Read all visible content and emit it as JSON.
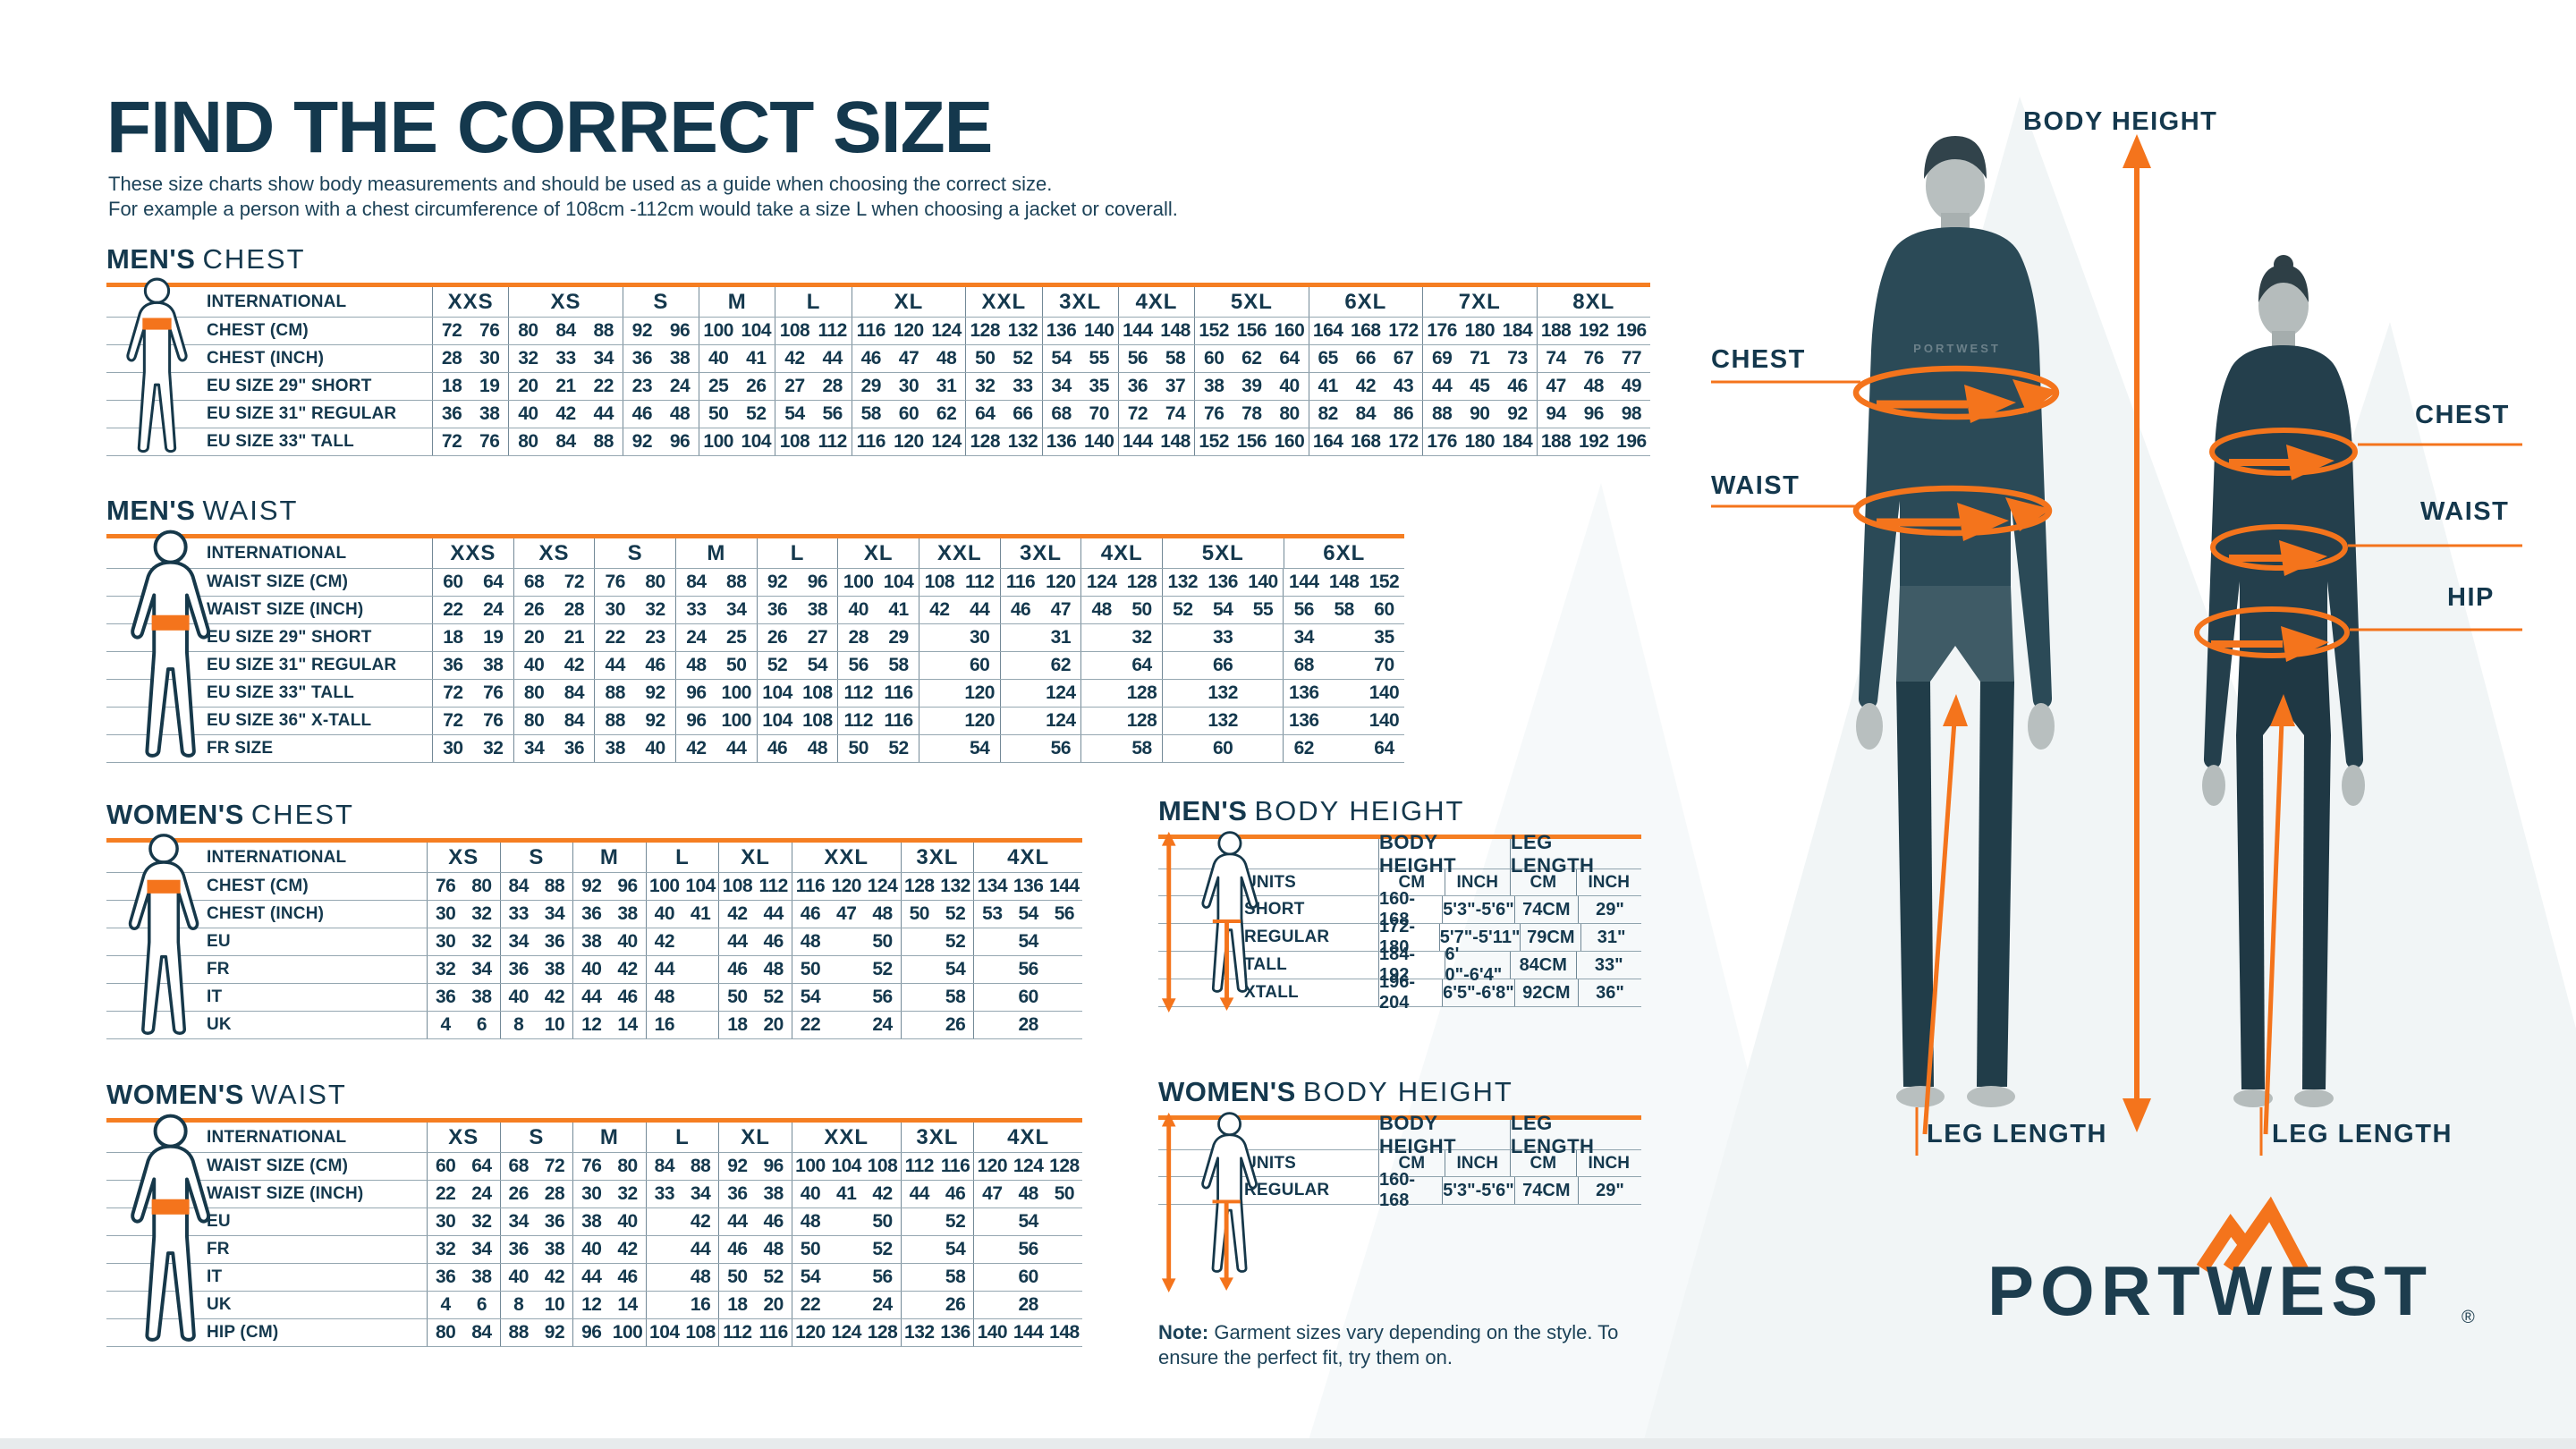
{
  "page": {
    "title": "FIND THE CORRECT SIZE",
    "intro_line1": "These size charts show body measurements and should be used as a guide when choosing the correct size.",
    "intro_line2": "For example a person with a chest circumference of 108cm -112cm would take a size L when choosing a jacket or coverall."
  },
  "colors": {
    "navy": "#14384d",
    "orange": "#f4741c",
    "border_orange": "#f57e22",
    "grid_line": "rgba(21,59,82,0.5)",
    "watermark": "#f1f5f6"
  },
  "size_tables": [
    {
      "id": "mens_chest",
      "heading_bold": "MEN'S",
      "heading_light": "CHEST",
      "label_header": "INTERNATIONAL",
      "band": "chest",
      "groups": [
        {
          "label": "XXS",
          "cols": 2
        },
        {
          "label": "XS",
          "cols": 3
        },
        {
          "label": "S",
          "cols": 2
        },
        {
          "label": "M",
          "cols": 2
        },
        {
          "label": "L",
          "cols": 2
        },
        {
          "label": "XL",
          "cols": 3
        },
        {
          "label": "XXL",
          "cols": 2
        },
        {
          "label": "3XL",
          "cols": 2
        },
        {
          "label": "4XL",
          "cols": 2
        },
        {
          "label": "5XL",
          "cols": 3
        },
        {
          "label": "6XL",
          "cols": 3
        },
        {
          "label": "7XL",
          "cols": 3
        },
        {
          "label": "8XL",
          "cols": 3
        }
      ],
      "rows": [
        {
          "label": "CHEST (CM)",
          "cells": [
            "72",
            "76",
            "80",
            "84",
            "88",
            "92",
            "96",
            "100",
            "104",
            "108",
            "112",
            "116",
            "120",
            "124",
            "128",
            "132",
            "136",
            "140",
            "144",
            "148",
            "152",
            "156",
            "160",
            "164",
            "168",
            "172",
            "176",
            "180",
            "184",
            "188",
            "192",
            "196"
          ]
        },
        {
          "label": "CHEST (INCH)",
          "cells": [
            "28",
            "30",
            "32",
            "33",
            "34",
            "36",
            "38",
            "40",
            "41",
            "42",
            "44",
            "46",
            "47",
            "48",
            "50",
            "52",
            "54",
            "55",
            "56",
            "58",
            "60",
            "62",
            "64",
            "65",
            "66",
            "67",
            "69",
            "71",
            "73",
            "74",
            "76",
            "77"
          ]
        },
        {
          "label": "EU SIZE 29\" SHORT",
          "cells": [
            "18",
            "19",
            "20",
            "21",
            "22",
            "23",
            "24",
            "25",
            "26",
            "27",
            "28",
            "29",
            "30",
            "31",
            "32",
            "33",
            "34",
            "35",
            "36",
            "37",
            "38",
            "39",
            "40",
            "41",
            "42",
            "43",
            "44",
            "45",
            "46",
            "47",
            "48",
            "49"
          ]
        },
        {
          "label": "EU SIZE 31\" REGULAR",
          "cells": [
            "36",
            "38",
            "40",
            "42",
            "44",
            "46",
            "48",
            "50",
            "52",
            "54",
            "56",
            "58",
            "60",
            "62",
            "64",
            "66",
            "68",
            "70",
            "72",
            "74",
            "76",
            "78",
            "80",
            "82",
            "84",
            "86",
            "88",
            "90",
            "92",
            "94",
            "96",
            "98"
          ]
        },
        {
          "label": "EU SIZE 33\" TALL",
          "cells": [
            "72",
            "76",
            "80",
            "84",
            "88",
            "92",
            "96",
            "100",
            "104",
            "108",
            "112",
            "116",
            "120",
            "124",
            "128",
            "132",
            "136",
            "140",
            "144",
            "148",
            "152",
            "156",
            "160",
            "164",
            "168",
            "172",
            "176",
            "180",
            "184",
            "188",
            "192",
            "196"
          ]
        }
      ]
    },
    {
      "id": "mens_waist",
      "heading_bold": "MEN'S",
      "heading_light": "WAIST",
      "label_header": "INTERNATIONAL",
      "band": "waist",
      "groups": [
        {
          "label": "XXS",
          "cols": 2
        },
        {
          "label": "XS",
          "cols": 2
        },
        {
          "label": "S",
          "cols": 2
        },
        {
          "label": "M",
          "cols": 2
        },
        {
          "label": "L",
          "cols": 2
        },
        {
          "label": "XL",
          "cols": 2
        },
        {
          "label": "XXL",
          "cols": 2
        },
        {
          "label": "3XL",
          "cols": 2
        },
        {
          "label": "4XL",
          "cols": 2
        },
        {
          "label": "5XL",
          "cols": 3
        },
        {
          "label": "6XL",
          "cols": 3
        }
      ],
      "rows": [
        {
          "label": "WAIST SIZE (CM)",
          "cells": [
            "60",
            "64",
            "68",
            "72",
            "76",
            "80",
            "84",
            "88",
            "92",
            "96",
            "100",
            "104",
            "108",
            "112",
            "116",
            "120",
            "124",
            "128",
            "132",
            "136",
            "140",
            "144",
            "148",
            "152"
          ]
        },
        {
          "label": "WAIST SIZE (INCH)",
          "cells": [
            "22",
            "24",
            "26",
            "28",
            "30",
            "32",
            "33",
            "34",
            "36",
            "38",
            "40",
            "41",
            "42",
            "44",
            "46",
            "47",
            "48",
            "50",
            "52",
            "54",
            "55",
            "56",
            "58",
            "60"
          ]
        },
        {
          "label": "EU SIZE 29\" SHORT",
          "cells": [
            "18",
            "19",
            "20",
            "21",
            "22",
            "23",
            "24",
            "25",
            "26",
            "27",
            "28",
            "29",
            "",
            "30",
            "",
            "31",
            "",
            "32",
            "",
            "33",
            "",
            "34",
            "",
            "35"
          ]
        },
        {
          "label": "EU SIZE 31\" REGULAR",
          "cells": [
            "36",
            "38",
            "40",
            "42",
            "44",
            "46",
            "48",
            "50",
            "52",
            "54",
            "56",
            "58",
            "",
            "60",
            "",
            "62",
            "",
            "64",
            "",
            "66",
            "",
            "68",
            "",
            "70"
          ]
        },
        {
          "label": "EU SIZE 33\" TALL",
          "cells": [
            "72",
            "76",
            "80",
            "84",
            "88",
            "92",
            "96",
            "100",
            "104",
            "108",
            "112",
            "116",
            "",
            "120",
            "",
            "124",
            "",
            "128",
            "",
            "132",
            "",
            "136",
            "",
            "140"
          ]
        },
        {
          "label": "EU SIZE 36\" X-TALL",
          "cells": [
            "72",
            "76",
            "80",
            "84",
            "88",
            "92",
            "96",
            "100",
            "104",
            "108",
            "112",
            "116",
            "",
            "120",
            "",
            "124",
            "",
            "128",
            "",
            "132",
            "",
            "136",
            "",
            "140"
          ]
        },
        {
          "label": "FR SIZE",
          "cells": [
            "30",
            "32",
            "34",
            "36",
            "38",
            "40",
            "42",
            "44",
            "46",
            "48",
            "50",
            "52",
            "",
            "54",
            "",
            "56",
            "",
            "58",
            "",
            "60",
            "",
            "62",
            "",
            "64"
          ]
        }
      ]
    },
    {
      "id": "womens_chest",
      "heading_bold": "WOMEN'S",
      "heading_light": "CHEST",
      "label_header": "INTERNATIONAL",
      "band": "chest",
      "groups": [
        {
          "label": "XS",
          "cols": 2
        },
        {
          "label": "S",
          "cols": 2
        },
        {
          "label": "M",
          "cols": 2
        },
        {
          "label": "L",
          "cols": 2
        },
        {
          "label": "XL",
          "cols": 2
        },
        {
          "label": "XXL",
          "cols": 3
        },
        {
          "label": "3XL",
          "cols": 2
        },
        {
          "label": "4XL",
          "cols": 3
        }
      ],
      "rows": [
        {
          "label": "CHEST (CM)",
          "cells": [
            "76",
            "80",
            "84",
            "88",
            "92",
            "96",
            "100",
            "104",
            "108",
            "112",
            "116",
            "120",
            "124",
            "128",
            "132",
            "134",
            "136",
            "144"
          ]
        },
        {
          "label": "CHEST (INCH)",
          "cells": [
            "30",
            "32",
            "33",
            "34",
            "36",
            "38",
            "40",
            "41",
            "42",
            "44",
            "46",
            "47",
            "48",
            "50",
            "52",
            "53",
            "54",
            "56"
          ]
        },
        {
          "label": "EU",
          "cells": [
            "30",
            "32",
            "34",
            "36",
            "38",
            "40",
            "42",
            "",
            "44",
            "46",
            "48",
            "",
            "50",
            "",
            "52",
            "",
            "54",
            ""
          ]
        },
        {
          "label": "FR",
          "cells": [
            "32",
            "34",
            "36",
            "38",
            "40",
            "42",
            "44",
            "",
            "46",
            "48",
            "50",
            "",
            "52",
            "",
            "54",
            "",
            "56",
            ""
          ]
        },
        {
          "label": "IT",
          "cells": [
            "36",
            "38",
            "40",
            "42",
            "44",
            "46",
            "48",
            "",
            "50",
            "52",
            "54",
            "",
            "56",
            "",
            "58",
            "",
            "60",
            ""
          ]
        },
        {
          "label": "UK",
          "cells": [
            "4",
            "6",
            "8",
            "10",
            "12",
            "14",
            "16",
            "",
            "18",
            "20",
            "22",
            "",
            "24",
            "",
            "26",
            "",
            "28",
            ""
          ]
        }
      ]
    },
    {
      "id": "womens_waist",
      "heading_bold": "WOMEN'S",
      "heading_light": "WAIST",
      "label_header": "INTERNATIONAL",
      "band": "waist",
      "groups": [
        {
          "label": "XS",
          "cols": 2
        },
        {
          "label": "S",
          "cols": 2
        },
        {
          "label": "M",
          "cols": 2
        },
        {
          "label": "L",
          "cols": 2
        },
        {
          "label": "XL",
          "cols": 2
        },
        {
          "label": "XXL",
          "cols": 3
        },
        {
          "label": "3XL",
          "cols": 2
        },
        {
          "label": "4XL",
          "cols": 3
        }
      ],
      "rows": [
        {
          "label": "WAIST SIZE (CM)",
          "cells": [
            "60",
            "64",
            "68",
            "72",
            "76",
            "80",
            "84",
            "88",
            "92",
            "96",
            "100",
            "104",
            "108",
            "112",
            "116",
            "120",
            "124",
            "128"
          ]
        },
        {
          "label": "WAIST SIZE (INCH)",
          "cells": [
            "22",
            "24",
            "26",
            "28",
            "30",
            "32",
            "33",
            "34",
            "36",
            "38",
            "40",
            "41",
            "42",
            "44",
            "46",
            "47",
            "48",
            "50"
          ]
        },
        {
          "label": "EU",
          "cells": [
            "30",
            "32",
            "34",
            "36",
            "38",
            "40",
            "",
            "42",
            "44",
            "46",
            "48",
            "",
            "50",
            "",
            "52",
            "",
            "54",
            ""
          ]
        },
        {
          "label": "FR",
          "cells": [
            "32",
            "34",
            "36",
            "38",
            "40",
            "42",
            "",
            "44",
            "46",
            "48",
            "50",
            "",
            "52",
            "",
            "54",
            "",
            "56",
            ""
          ]
        },
        {
          "label": "IT",
          "cells": [
            "36",
            "38",
            "40",
            "42",
            "44",
            "46",
            "",
            "48",
            "50",
            "52",
            "54",
            "",
            "56",
            "",
            "58",
            "",
            "60",
            ""
          ]
        },
        {
          "label": "UK",
          "cells": [
            "4",
            "6",
            "8",
            "10",
            "12",
            "14",
            "",
            "16",
            "18",
            "20",
            "22",
            "",
            "24",
            "",
            "26",
            "",
            "28",
            ""
          ]
        },
        {
          "label": "HIP (CM)",
          "cells": [
            "80",
            "84",
            "88",
            "92",
            "96",
            "100",
            "104",
            "108",
            "112",
            "116",
            "120",
            "124",
            "128",
            "132",
            "136",
            "140",
            "144",
            "148"
          ]
        }
      ]
    }
  ],
  "body_tables": [
    {
      "id": "mens_body",
      "heading_bold": "MEN'S",
      "heading_light": "BODY HEIGHT",
      "units_label": "UNITS",
      "group_headers": [
        "BODY HEIGHT",
        "LEG LENGTH"
      ],
      "units": [
        "CM",
        "INCH",
        "CM",
        "INCH"
      ],
      "rows": [
        {
          "label": "SHORT",
          "values": [
            "160-168",
            "5'3\"-5'6\"",
            "74CM",
            "29\""
          ]
        },
        {
          "label": "REGULAR",
          "values": [
            "172-180",
            "5'7\"-5'11\"",
            "79CM",
            "31\""
          ]
        },
        {
          "label": "TALL",
          "values": [
            "184-192",
            "6' 0\"-6'4\"",
            "84CM",
            "33\""
          ]
        },
        {
          "label": "XTALL",
          "values": [
            "196-204",
            "6'5\"-6'8\"",
            "92CM",
            "36\""
          ]
        }
      ]
    },
    {
      "id": "womens_body",
      "heading_bold": "WOMEN'S",
      "heading_light": "BODY HEIGHT",
      "units_label": "UNITS",
      "group_headers": [
        "BODY HEIGHT",
        "LEG LENGTH"
      ],
      "units": [
        "CM",
        "INCH",
        "CM",
        "INCH"
      ],
      "rows": [
        {
          "label": "REGULAR",
          "values": [
            "160-168",
            "5'3\"-5'6\"",
            "74CM",
            "29\""
          ]
        }
      ]
    }
  ],
  "illustration": {
    "body_height": "BODY HEIGHT",
    "chest_left": "CHEST",
    "waist_left": "WAIST",
    "chest_right": "CHEST",
    "waist_right": "WAIST",
    "hip_right": "HIP",
    "leg_length_left": "LEG LENGTH",
    "leg_length_right": "LEG LENGTH",
    "shirt_brand": "PORTWEST"
  },
  "note": {
    "bold": "Note:",
    "text": " Garment sizes vary depending on the style. To ensure the perfect fit, try them on."
  },
  "logo": {
    "text": "PORTWEST",
    "reg": "®"
  }
}
